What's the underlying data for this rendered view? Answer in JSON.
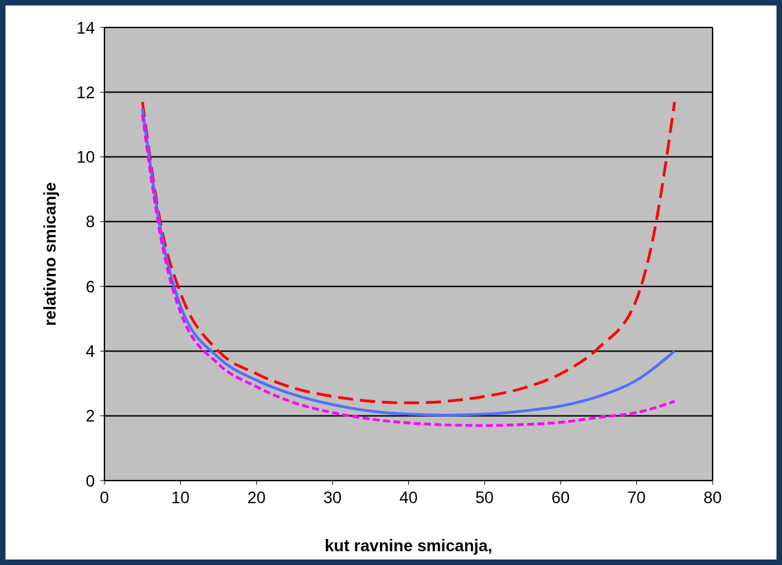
{
  "chart_data": {
    "type": "line",
    "xlabel": "kut ravnine smicanja,",
    "ylabel": "relativno smicanje",
    "xlim": [
      0,
      80
    ],
    "xticks": [
      0,
      10,
      20,
      30,
      40,
      50,
      60,
      70,
      80
    ],
    "ylim": [
      0,
      14
    ],
    "yticks": [
      0,
      2,
      4,
      6,
      8,
      10,
      12,
      14
    ],
    "grid": "y",
    "marker": "none",
    "series": [
      {
        "color": "#ff0000",
        "line_style": "dashed",
        "x": [
          5,
          7.5,
          10,
          15,
          20,
          25,
          30,
          35,
          40,
          45,
          50,
          55,
          60,
          65,
          70,
          72,
          75
        ],
        "values": [
          11.7,
          7.8,
          5.8,
          4.0,
          3.3,
          2.85,
          2.6,
          2.45,
          2.4,
          2.45,
          2.6,
          2.85,
          3.3,
          4.1,
          5.6,
          7.3,
          11.7
        ]
      },
      {
        "color": "#4f6fff",
        "line_style": "solid",
        "x": [
          5,
          7.5,
          10,
          15,
          20,
          25,
          30,
          35,
          40,
          45,
          50,
          55,
          60,
          65,
          70,
          75
        ],
        "values": [
          11.5,
          7.6,
          5.4,
          3.8,
          3.1,
          2.65,
          2.35,
          2.15,
          2.05,
          2.02,
          2.05,
          2.15,
          2.3,
          2.6,
          3.1,
          4.0
        ]
      },
      {
        "color": "#ff00ff",
        "line_style": "dotted",
        "x": [
          5,
          7.5,
          10,
          15,
          20,
          25,
          30,
          35,
          40,
          45,
          50,
          55,
          60,
          65,
          70,
          75
        ],
        "values": [
          11.3,
          7.4,
          5.2,
          3.6,
          2.9,
          2.4,
          2.1,
          1.9,
          1.78,
          1.72,
          1.7,
          1.73,
          1.8,
          1.95,
          2.1,
          2.45
        ]
      }
    ]
  }
}
